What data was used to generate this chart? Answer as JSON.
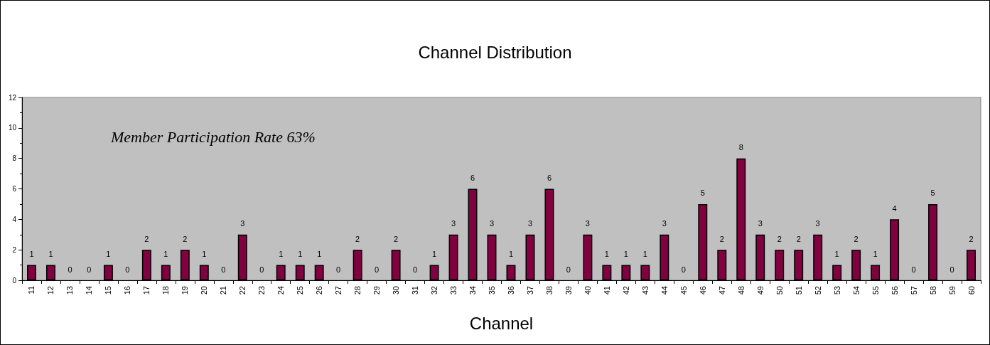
{
  "chart_data": {
    "type": "bar",
    "title": "Channel Distribution",
    "xlabel": "Channel",
    "categories": [
      "11",
      "12",
      "13",
      "14",
      "15",
      "16",
      "17",
      "18",
      "19",
      "20",
      "21",
      "22",
      "23",
      "24",
      "25",
      "26",
      "27",
      "28",
      "29",
      "30",
      "31",
      "32",
      "33",
      "34",
      "35",
      "36",
      "37",
      "38",
      "39",
      "40",
      "41",
      "42",
      "43",
      "44",
      "45",
      "46",
      "47",
      "48",
      "49",
      "50",
      "51",
      "52",
      "53",
      "54",
      "55",
      "56",
      "57",
      "58",
      "59",
      "60"
    ],
    "values": [
      1,
      1,
      0,
      0,
      1,
      0,
      2,
      1,
      2,
      1,
      0,
      3,
      0,
      1,
      1,
      1,
      0,
      2,
      0,
      2,
      0,
      1,
      3,
      6,
      3,
      1,
      3,
      6,
      0,
      3,
      1,
      1,
      1,
      3,
      0,
      5,
      2,
      8,
      3,
      2,
      2,
      3,
      1,
      2,
      1,
      4,
      0,
      5,
      0,
      2
    ],
    "color": "#800040",
    "ylim": [
      0,
      12
    ],
    "yticks": [
      0,
      2,
      4,
      6,
      8,
      10,
      12
    ],
    "grid": false,
    "data_labels": true,
    "annotations": [
      "Member Participation Rate 63%"
    ]
  }
}
